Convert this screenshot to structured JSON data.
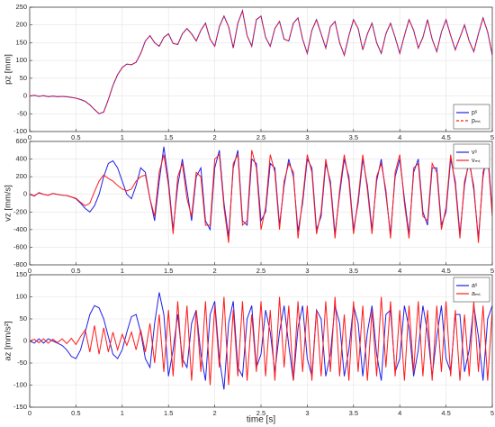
{
  "chart_data": [
    {
      "type": "line",
      "ylabel": "pz [mm]",
      "xlim": [
        0,
        5
      ],
      "xticks": [
        0,
        0.5,
        1,
        1.5,
        2,
        2.5,
        3,
        3.5,
        4,
        4.5,
        5
      ],
      "ylim": [
        -100,
        250
      ],
      "yticks": [
        -100,
        -50,
        0,
        50,
        100,
        150,
        200,
        250
      ],
      "grid": true,
      "legend": "lower right",
      "x": [
        0,
        0.05,
        0.1,
        0.15,
        0.2,
        0.25,
        0.3,
        0.35,
        0.4,
        0.45,
        0.5,
        0.55,
        0.6,
        0.65,
        0.7,
        0.75,
        0.8,
        0.85,
        0.9,
        0.95,
        1,
        1.05,
        1.1,
        1.15,
        1.2,
        1.25,
        1.3,
        1.35,
        1.4,
        1.45,
        1.5,
        1.55,
        1.6,
        1.65,
        1.7,
        1.75,
        1.8,
        1.85,
        1.9,
        1.95,
        2,
        2.05,
        2.1,
        2.15,
        2.2,
        2.25,
        2.3,
        2.35,
        2.4,
        2.45,
        2.5,
        2.55,
        2.6,
        2.65,
        2.7,
        2.75,
        2.8,
        2.85,
        2.9,
        2.95,
        3,
        3.05,
        3.1,
        3.15,
        3.2,
        3.25,
        3.3,
        3.35,
        3.4,
        3.45,
        3.5,
        3.55,
        3.6,
        3.65,
        3.7,
        3.75,
        3.8,
        3.85,
        3.9,
        3.95,
        4,
        4.05,
        4.1,
        4.15,
        4.2,
        4.25,
        4.3,
        4.35,
        4.4,
        4.45,
        4.5,
        4.55,
        4.6,
        4.65,
        4.7,
        4.75,
        4.8,
        4.85,
        4.9,
        4.95,
        5
      ],
      "series": [
        {
          "name": "pˢ",
          "color": "#1f1fe6",
          "dashed": false,
          "values": [
            0,
            2,
            -1,
            1,
            -2,
            0,
            -2,
            -1,
            -2,
            -4,
            -6,
            -10,
            -15,
            -25,
            -38,
            -50,
            -45,
            -10,
            30,
            60,
            80,
            90,
            88,
            95,
            120,
            155,
            170,
            150,
            140,
            165,
            175,
            148,
            145,
            175,
            190,
            175,
            155,
            185,
            205,
            160,
            140,
            195,
            225,
            195,
            135,
            205,
            240,
            170,
            140,
            215,
            225,
            165,
            140,
            190,
            210,
            160,
            155,
            205,
            220,
            160,
            120,
            185,
            215,
            175,
            135,
            195,
            210,
            150,
            115,
            170,
            215,
            190,
            130,
            175,
            205,
            150,
            120,
            175,
            205,
            165,
            120,
            170,
            215,
            185,
            135,
            165,
            215,
            160,
            125,
            180,
            215,
            170,
            130,
            165,
            200,
            155,
            125,
            175,
            220,
            180,
            115
          ]
        },
        {
          "name": "pₘₜ",
          "color": "#ff1a1a",
          "dashed": true,
          "values": [
            0,
            2,
            -1,
            1,
            -2,
            0,
            -2,
            -1,
            -2,
            -4,
            -6,
            -10,
            -15,
            -25,
            -38,
            -50,
            -45,
            -10,
            30,
            60,
            80,
            90,
            88,
            95,
            120,
            155,
            170,
            150,
            140,
            165,
            175,
            148,
            145,
            175,
            190,
            175,
            155,
            185,
            205,
            160,
            140,
            195,
            225,
            195,
            135,
            205,
            240,
            170,
            140,
            215,
            225,
            165,
            140,
            190,
            210,
            160,
            155,
            205,
            220,
            160,
            120,
            185,
            215,
            175,
            135,
            195,
            210,
            150,
            115,
            170,
            215,
            190,
            130,
            175,
            205,
            150,
            120,
            175,
            205,
            165,
            120,
            170,
            215,
            185,
            135,
            165,
            215,
            160,
            125,
            180,
            215,
            170,
            130,
            165,
            200,
            155,
            125,
            175,
            220,
            180,
            115
          ]
        }
      ]
    },
    {
      "type": "line",
      "ylabel": "vz [mm/s]",
      "xlim": [
        0,
        5
      ],
      "xticks": [
        0,
        0.5,
        1,
        1.5,
        2,
        2.5,
        3,
        3.5,
        4,
        4.5,
        5
      ],
      "ylim": [
        -800,
        600
      ],
      "yticks": [
        -800,
        -600,
        -400,
        -200,
        0,
        200,
        400,
        600
      ],
      "grid": true,
      "legend": "upper right",
      "x": [
        0,
        0.05,
        0.1,
        0.15,
        0.2,
        0.25,
        0.3,
        0.35,
        0.4,
        0.45,
        0.5,
        0.55,
        0.6,
        0.65,
        0.7,
        0.75,
        0.8,
        0.85,
        0.9,
        0.95,
        1,
        1.05,
        1.1,
        1.15,
        1.2,
        1.25,
        1.3,
        1.35,
        1.4,
        1.45,
        1.5,
        1.55,
        1.6,
        1.65,
        1.7,
        1.75,
        1.8,
        1.85,
        1.9,
        1.95,
        2,
        2.05,
        2.1,
        2.15,
        2.2,
        2.25,
        2.3,
        2.35,
        2.4,
        2.45,
        2.5,
        2.55,
        2.6,
        2.65,
        2.7,
        2.75,
        2.8,
        2.85,
        2.9,
        2.95,
        3,
        3.05,
        3.1,
        3.15,
        3.2,
        3.25,
        3.3,
        3.35,
        3.4,
        3.45,
        3.5,
        3.55,
        3.6,
        3.65,
        3.7,
        3.75,
        3.8,
        3.85,
        3.9,
        3.95,
        4,
        4.05,
        4.1,
        4.15,
        4.2,
        4.25,
        4.3,
        4.35,
        4.4,
        4.45,
        4.5,
        4.55,
        4.6,
        4.65,
        4.7,
        4.75,
        4.8,
        4.85,
        4.9,
        4.95,
        5
      ],
      "series": [
        {
          "name": "vˢ",
          "color": "#1f1fe6",
          "dashed": false,
          "values": [
            0,
            -20,
            20,
            0,
            -10,
            10,
            0,
            -10,
            -15,
            -30,
            -50,
            -100,
            -160,
            -200,
            -130,
            0,
            200,
            350,
            380,
            300,
            150,
            0,
            -50,
            100,
            300,
            250,
            -50,
            -300,
            150,
            540,
            150,
            -400,
            100,
            400,
            50,
            -300,
            200,
            300,
            -300,
            -400,
            300,
            500,
            -100,
            -480,
            300,
            500,
            -300,
            -350,
            400,
            350,
            -300,
            -200,
            350,
            300,
            -350,
            100,
            400,
            200,
            -420,
            -100,
            400,
            300,
            -400,
            -250,
            350,
            150,
            -450,
            0,
            400,
            200,
            -400,
            -100,
            400,
            100,
            -400,
            150,
            400,
            0,
            -450,
            200,
            400,
            -50,
            -450,
            250,
            400,
            -200,
            -350,
            300,
            300,
            -350,
            -200,
            400,
            150,
            -450,
            100,
            400,
            50,
            -500,
            200,
            500,
            -200
          ]
        },
        {
          "name": "vₘₜ",
          "color": "#ff1a1a",
          "dashed": false,
          "values": [
            0,
            -15,
            15,
            0,
            -10,
            10,
            0,
            -10,
            -15,
            -30,
            -45,
            -90,
            -130,
            -100,
            30,
            150,
            220,
            180,
            150,
            100,
            60,
            40,
            60,
            150,
            200,
            220,
            -50,
            -250,
            250,
            450,
            100,
            -450,
            200,
            350,
            -50,
            -250,
            250,
            200,
            -350,
            -350,
            400,
            450,
            -150,
            -550,
            350,
            450,
            -350,
            -300,
            500,
            300,
            -400,
            -150,
            450,
            250,
            -400,
            150,
            350,
            250,
            -500,
            -50,
            450,
            250,
            -450,
            -200,
            400,
            100,
            -500,
            50,
            450,
            150,
            -450,
            -50,
            450,
            50,
            -450,
            200,
            350,
            50,
            -500,
            250,
            450,
            -100,
            -500,
            300,
            350,
            -250,
            -300,
            350,
            250,
            -400,
            -150,
            450,
            100,
            -500,
            150,
            350,
            100,
            -550,
            250,
            450,
            -250
          ]
        }
      ]
    },
    {
      "type": "line",
      "ylabel": "az [mm/s²]",
      "xlabel": "time [s]",
      "xlim": [
        0,
        5
      ],
      "xticks": [
        0,
        0.5,
        1,
        1.5,
        2,
        2.5,
        3,
        3.5,
        4,
        4.5,
        5
      ],
      "ylim": [
        -150,
        150
      ],
      "yticks": [
        -150,
        -100,
        -50,
        0,
        50,
        100,
        150
      ],
      "grid": true,
      "legend": "upper right",
      "x": [
        0,
        0.05,
        0.1,
        0.15,
        0.2,
        0.25,
        0.3,
        0.35,
        0.4,
        0.45,
        0.5,
        0.55,
        0.6,
        0.65,
        0.7,
        0.75,
        0.8,
        0.85,
        0.9,
        0.95,
        1,
        1.05,
        1.1,
        1.15,
        1.2,
        1.25,
        1.3,
        1.35,
        1.4,
        1.45,
        1.5,
        1.55,
        1.6,
        1.65,
        1.7,
        1.75,
        1.8,
        1.85,
        1.9,
        1.95,
        2,
        2.05,
        2.1,
        2.15,
        2.2,
        2.25,
        2.3,
        2.35,
        2.4,
        2.45,
        2.5,
        2.55,
        2.6,
        2.65,
        2.7,
        2.75,
        2.8,
        2.85,
        2.9,
        2.95,
        3,
        3.05,
        3.1,
        3.15,
        3.2,
        3.25,
        3.3,
        3.35,
        3.4,
        3.45,
        3.5,
        3.55,
        3.6,
        3.65,
        3.7,
        3.75,
        3.8,
        3.85,
        3.9,
        3.95,
        4,
        4.05,
        4.1,
        4.15,
        4.2,
        4.25,
        4.3,
        4.35,
        4.4,
        4.45,
        4.5,
        4.55,
        4.6,
        4.65,
        4.7,
        4.75,
        4.8,
        4.85,
        4.9,
        4.95,
        5
      ],
      "series": [
        {
          "name": "aˢ",
          "color": "#1f1fe6",
          "dashed": false,
          "values": [
            0,
            -5,
            5,
            -5,
            5,
            0,
            -5,
            -10,
            -20,
            -35,
            -40,
            -20,
            20,
            60,
            80,
            75,
            50,
            10,
            -30,
            -40,
            -20,
            20,
            55,
            60,
            20,
            -40,
            -60,
            40,
            110,
            60,
            -80,
            -20,
            60,
            -40,
            -60,
            40,
            70,
            -30,
            -90,
            60,
            90,
            -40,
            -110,
            40,
            90,
            -60,
            -80,
            50,
            80,
            -60,
            -30,
            70,
            20,
            -70,
            20,
            80,
            -10,
            -90,
            30,
            80,
            -40,
            -80,
            70,
            50,
            -80,
            -30,
            80,
            40,
            -80,
            -20,
            80,
            40,
            -80,
            20,
            80,
            -30,
            -90,
            60,
            70,
            -70,
            -40,
            80,
            30,
            -80,
            -20,
            80,
            20,
            -80,
            10,
            80,
            -40,
            -70,
            60,
            60,
            -70,
            -20,
            80,
            10,
            -90,
            50,
            80
          ]
        },
        {
          "name": "aₘₜ",
          "color": "#ff1a1a",
          "dashed": false,
          "values": [
            0,
            4,
            -4,
            5,
            -5,
            4,
            -4,
            5,
            -6,
            6,
            -8,
            10,
            25,
            -25,
            35,
            -30,
            30,
            -25,
            20,
            -20,
            15,
            -10,
            20,
            -20,
            25,
            -25,
            40,
            -50,
            60,
            -70,
            70,
            -80,
            90,
            -60,
            80,
            -90,
            70,
            -70,
            90,
            -100,
            80,
            -60,
            100,
            -100,
            70,
            -80,
            90,
            -90,
            60,
            -70,
            90,
            -80,
            70,
            -90,
            100,
            -60,
            80,
            -90,
            90,
            -70,
            80,
            -90,
            70,
            -80,
            90,
            -70,
            100,
            -80,
            60,
            -90,
            90,
            -70,
            80,
            -90,
            70,
            -80,
            100,
            -60,
            90,
            -80,
            70,
            -90,
            80,
            -70,
            90,
            -80,
            70,
            -90,
            80,
            -70,
            90,
            -80,
            70,
            -90,
            60,
            -80,
            90,
            -70,
            80,
            -90,
            70
          ]
        }
      ]
    }
  ]
}
